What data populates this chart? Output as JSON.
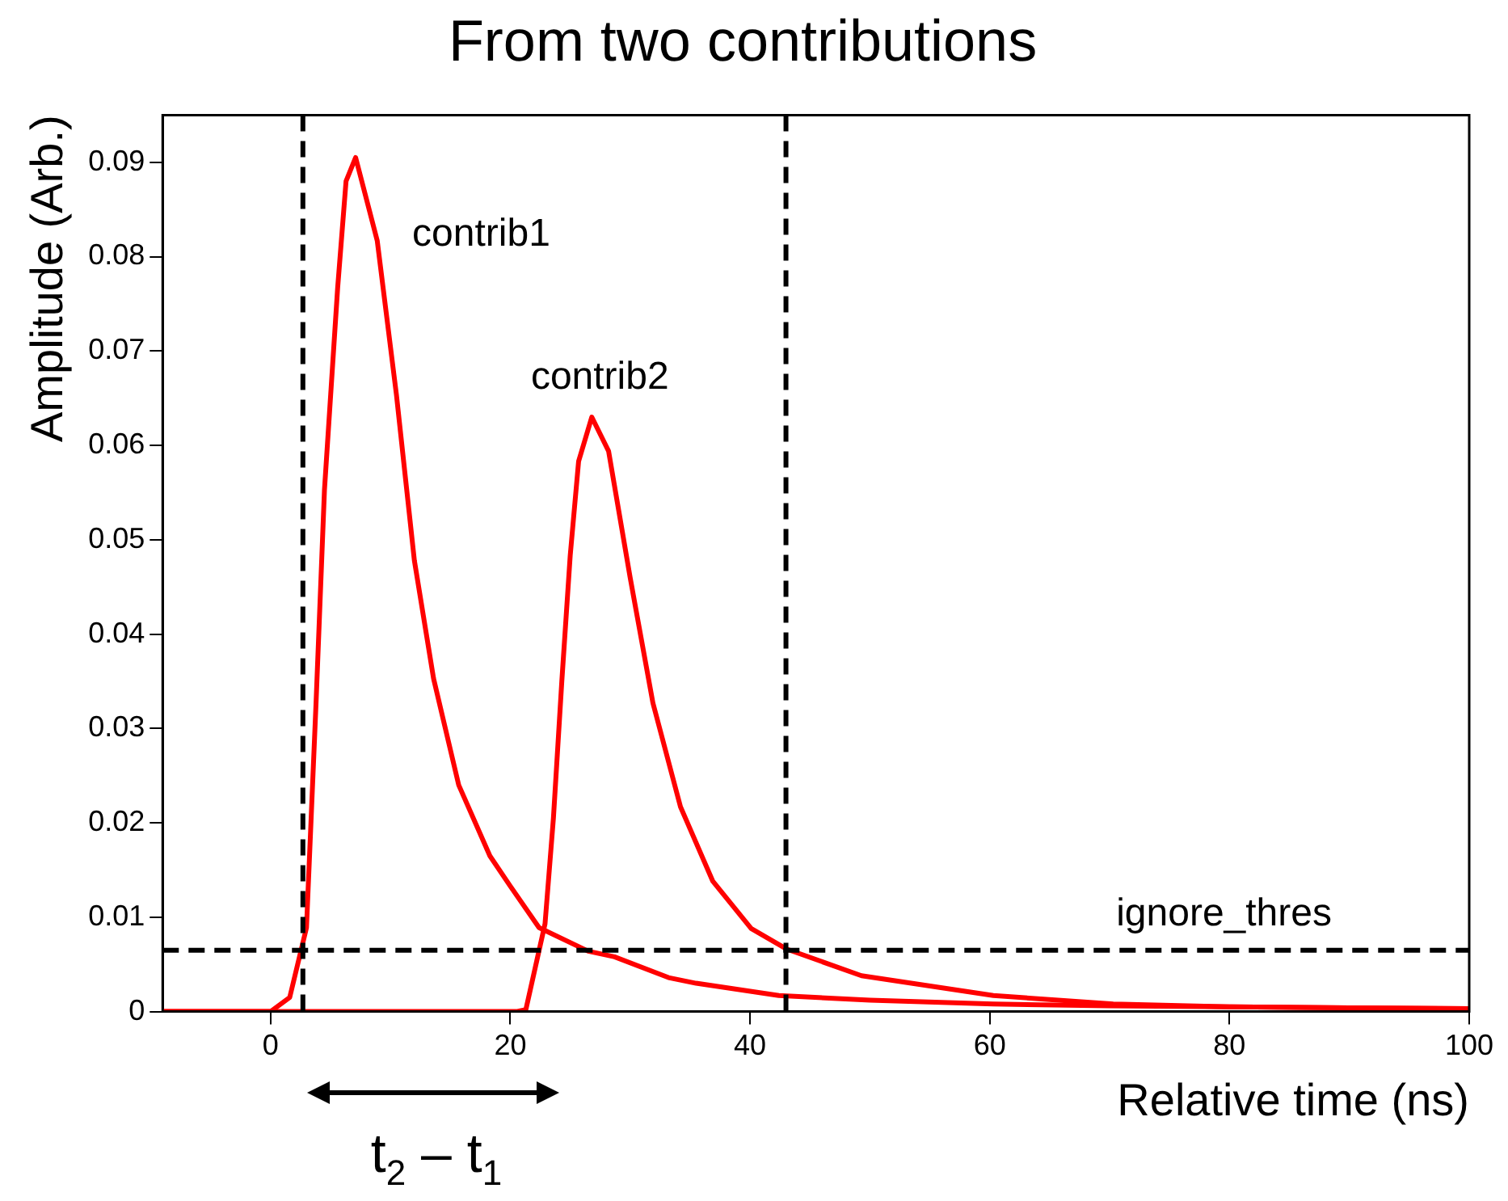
{
  "chart_data": {
    "type": "line",
    "title": "From two contributions",
    "xlabel": "Relative time (ns)",
    "ylabel": "Amplitude (Arb.)",
    "series": [
      {
        "name": "contrib1",
        "color": "#ff0000",
        "x": [
          -9,
          0,
          1.6,
          3.0,
          3.8,
          4.5,
          5.6,
          6.3,
          7.1,
          8.9,
          10.5,
          12.0,
          13.6,
          15.7,
          18.3,
          20.0,
          22.4,
          26.5,
          28.7,
          33.2,
          35.5,
          42.4,
          50,
          60.3,
          70,
          80,
          90,
          100
        ],
        "values": [
          0,
          0,
          0.0015,
          0.0089,
          0.0328,
          0.0553,
          0.0767,
          0.088,
          0.0905,
          0.0817,
          0.0654,
          0.0478,
          0.0353,
          0.024,
          0.0165,
          0.0133,
          0.0089,
          0.0064,
          0.0058,
          0.0036,
          0.003,
          0.0017,
          0.0012,
          0.0008,
          0.0006,
          0.0005,
          0.0004,
          0.0003
        ]
      },
      {
        "name": "contrib2",
        "color": "#ff0000",
        "x": [
          -9,
          20.5,
          21.3,
          22.9,
          23.6,
          24.3,
          25.0,
          25.7,
          26.8,
          28.2,
          30.0,
          31.9,
          34.2,
          36.9,
          40.1,
          43.1,
          49.3,
          60.3,
          70.3,
          80,
          90,
          100
        ],
        "values": [
          0,
          0,
          0.0002,
          0.0093,
          0.0205,
          0.035,
          0.0483,
          0.0583,
          0.063,
          0.0594,
          0.046,
          0.0327,
          0.0217,
          0.0138,
          0.0088,
          0.0066,
          0.0038,
          0.0017,
          0.0008,
          0.0005,
          0.0004,
          0.0003
        ]
      }
    ],
    "xlim": [
      -9,
      100
    ],
    "xticks": [
      0,
      20,
      40,
      60,
      80,
      100
    ],
    "ylim": [
      0,
      0.095
    ],
    "yticks": [
      0,
      0.01,
      0.02,
      0.03,
      0.04,
      0.05,
      0.06,
      0.07,
      0.08,
      0.09
    ],
    "ref_lines": [
      {
        "axis": "x",
        "value": 2.7,
        "color": "#000000",
        "line_style": "dashed"
      },
      {
        "axis": "x",
        "value": 43.0,
        "color": "#000000",
        "line_style": "dashed"
      },
      {
        "axis": "y",
        "value": 0.0065,
        "label": "ignore_thres",
        "color": "#000000",
        "line_style": "dashed"
      }
    ],
    "annotations": [
      "t$_{2}$ – t$_{1}$"
    ],
    "grid": false,
    "legend": false,
    "marker": "none"
  }
}
